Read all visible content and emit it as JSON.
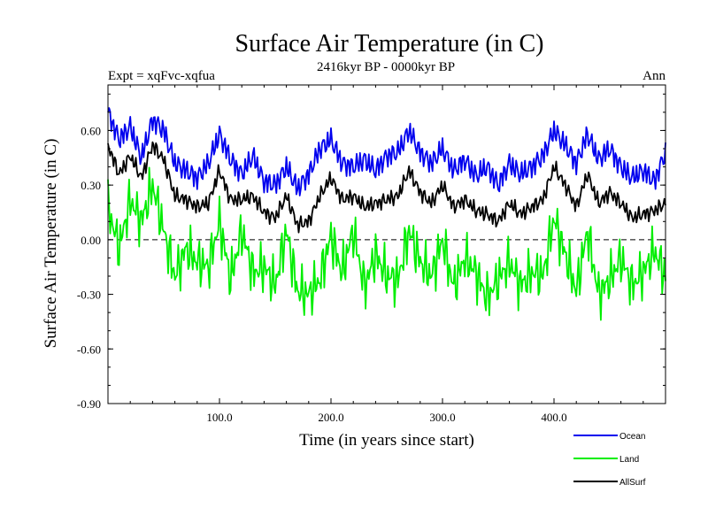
{
  "chart_data": {
    "type": "line",
    "title": "Surface Air Temperature (in C)",
    "subtitle": "2416kyr BP - 0000kyr BP",
    "left_label": "Expt = xqFvc-xqfua",
    "right_label": "Ann",
    "xlabel": "Time (in years since start)",
    "ylabel": "Surface Air Temperature (in C)",
    "xlim": [
      0,
      500
    ],
    "ylim": [
      -0.9,
      0.85
    ],
    "x_ticks": [
      100,
      200,
      300,
      400
    ],
    "x_tick_labels": [
      "100.0",
      "200.0",
      "300.0",
      "400.0"
    ],
    "y_ticks": [
      -0.9,
      -0.6,
      -0.3,
      0.0,
      0.3,
      0.6
    ],
    "y_tick_labels": [
      "-0.90",
      "-0.60",
      "-0.30",
      "0.00",
      "0.30",
      "0.60"
    ],
    "zero_line": true,
    "x": [
      0,
      10,
      20,
      30,
      40,
      50,
      60,
      70,
      80,
      90,
      100,
      110,
      120,
      130,
      140,
      150,
      160,
      170,
      180,
      190,
      200,
      210,
      220,
      230,
      240,
      250,
      260,
      270,
      280,
      290,
      300,
      310,
      320,
      330,
      340,
      350,
      360,
      370,
      380,
      390,
      400,
      410,
      420,
      430,
      440,
      450,
      460,
      470,
      480,
      490,
      500
    ],
    "series": [
      {
        "name": "Ocean",
        "color": "#0000ee",
        "values": [
          0.7,
          0.55,
          0.62,
          0.45,
          0.66,
          0.6,
          0.42,
          0.38,
          0.34,
          0.42,
          0.58,
          0.44,
          0.36,
          0.46,
          0.32,
          0.3,
          0.4,
          0.28,
          0.36,
          0.5,
          0.55,
          0.42,
          0.4,
          0.44,
          0.38,
          0.46,
          0.48,
          0.6,
          0.48,
          0.42,
          0.5,
          0.38,
          0.44,
          0.35,
          0.4,
          0.3,
          0.42,
          0.36,
          0.4,
          0.46,
          0.6,
          0.52,
          0.42,
          0.58,
          0.44,
          0.5,
          0.4,
          0.34,
          0.38,
          0.32,
          0.48
        ]
      },
      {
        "name": "Land",
        "color": "#00ee00",
        "values": [
          0.18,
          -0.05,
          0.22,
          0.1,
          0.3,
          0.05,
          -0.2,
          -0.05,
          -0.12,
          -0.15,
          0.1,
          -0.22,
          0.05,
          -0.18,
          -0.15,
          -0.25,
          0.05,
          -0.28,
          -0.3,
          -0.22,
          0.02,
          -0.18,
          0.05,
          -0.26,
          -0.08,
          -0.2,
          -0.22,
          0.05,
          -0.12,
          -0.2,
          0.0,
          -0.26,
          -0.1,
          -0.18,
          -0.32,
          -0.22,
          -0.12,
          -0.25,
          -0.18,
          -0.2,
          0.12,
          -0.08,
          -0.28,
          0.05,
          -0.3,
          -0.22,
          -0.1,
          -0.25,
          -0.18,
          -0.06,
          -0.2
        ]
      },
      {
        "name": "AllSurf",
        "color": "#000000",
        "values": [
          0.52,
          0.36,
          0.46,
          0.34,
          0.52,
          0.44,
          0.24,
          0.22,
          0.18,
          0.2,
          0.38,
          0.22,
          0.22,
          0.24,
          0.15,
          0.12,
          0.24,
          0.08,
          0.1,
          0.24,
          0.34,
          0.22,
          0.24,
          0.18,
          0.2,
          0.22,
          0.24,
          0.38,
          0.26,
          0.2,
          0.3,
          0.18,
          0.22,
          0.16,
          0.14,
          0.1,
          0.2,
          0.14,
          0.18,
          0.22,
          0.4,
          0.3,
          0.18,
          0.36,
          0.2,
          0.26,
          0.2,
          0.12,
          0.14,
          0.16,
          0.2
        ]
      }
    ],
    "legend": {
      "placement": "bottom-right",
      "entries": [
        "Ocean",
        "Land",
        "AllSurf"
      ]
    }
  }
}
